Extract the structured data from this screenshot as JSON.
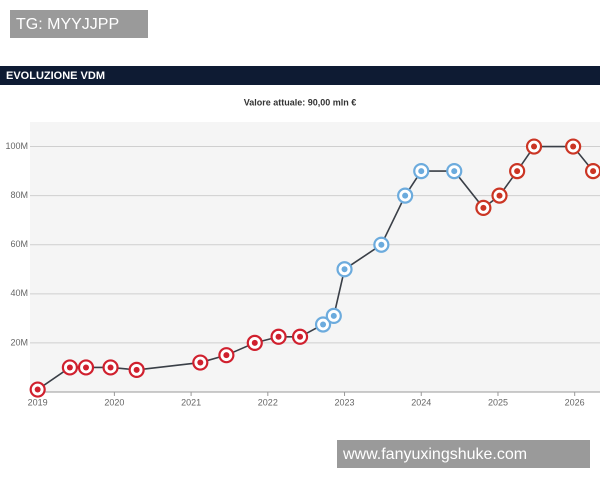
{
  "watermarks": [
    "TG: MYYJJPP",
    "www.fanyuxingshuke.com"
  ],
  "chart_data": {
    "type": "line",
    "title": "EVOLUZIONE VDM",
    "subtitle": "Valore attuale: 90,00 mln €",
    "x": [
      2019.0,
      2019.42,
      2019.63,
      2019.95,
      2020.29,
      2021.12,
      2021.46,
      2021.83,
      2022.14,
      2022.42,
      2022.72,
      2022.86,
      2023.0,
      2023.48,
      2023.79,
      2024.0,
      2024.43,
      2024.81,
      2025.02,
      2025.25,
      2025.47,
      2025.98,
      2026.24
    ],
    "series": [
      {
        "color": "#3a3f47",
        "values": [
          1,
          10,
          10,
          10,
          9,
          12,
          15,
          20,
          22.5,
          22.5,
          27.5,
          31,
          50,
          60,
          80,
          90,
          90,
          75,
          80,
          90,
          100,
          100,
          90
        ],
        "marker_colors": [
          "#d0202e",
          "#d0202e",
          "#d0202e",
          "#d0202e",
          "#d0202e",
          "#d0202e",
          "#d0202e",
          "#d0202e",
          "#d0202e",
          "#d0202e",
          "#6cabdd",
          "#6cabdd",
          "#6cabdd",
          "#6cabdd",
          "#6cabdd",
          "#6cabdd",
          "#6cabdd",
          "#cb3524",
          "#cb3524",
          "#cb3524",
          "#cb3524",
          "#cb3524",
          "#cb3524"
        ]
      }
    ],
    "xlim": [
      2018.9,
      2026.33
    ],
    "ylim": [
      0,
      110
    ],
    "xticks": [
      2019,
      2020,
      2021,
      2022,
      2023,
      2024,
      2025,
      2026
    ],
    "yticks": [
      {
        "value": 20,
        "label": "20M"
      },
      {
        "value": 40,
        "label": "40M"
      },
      {
        "value": 60,
        "label": "60M"
      },
      {
        "value": 80,
        "label": "80M"
      },
      {
        "value": 100,
        "label": "100M"
      }
    ],
    "grid": true
  }
}
